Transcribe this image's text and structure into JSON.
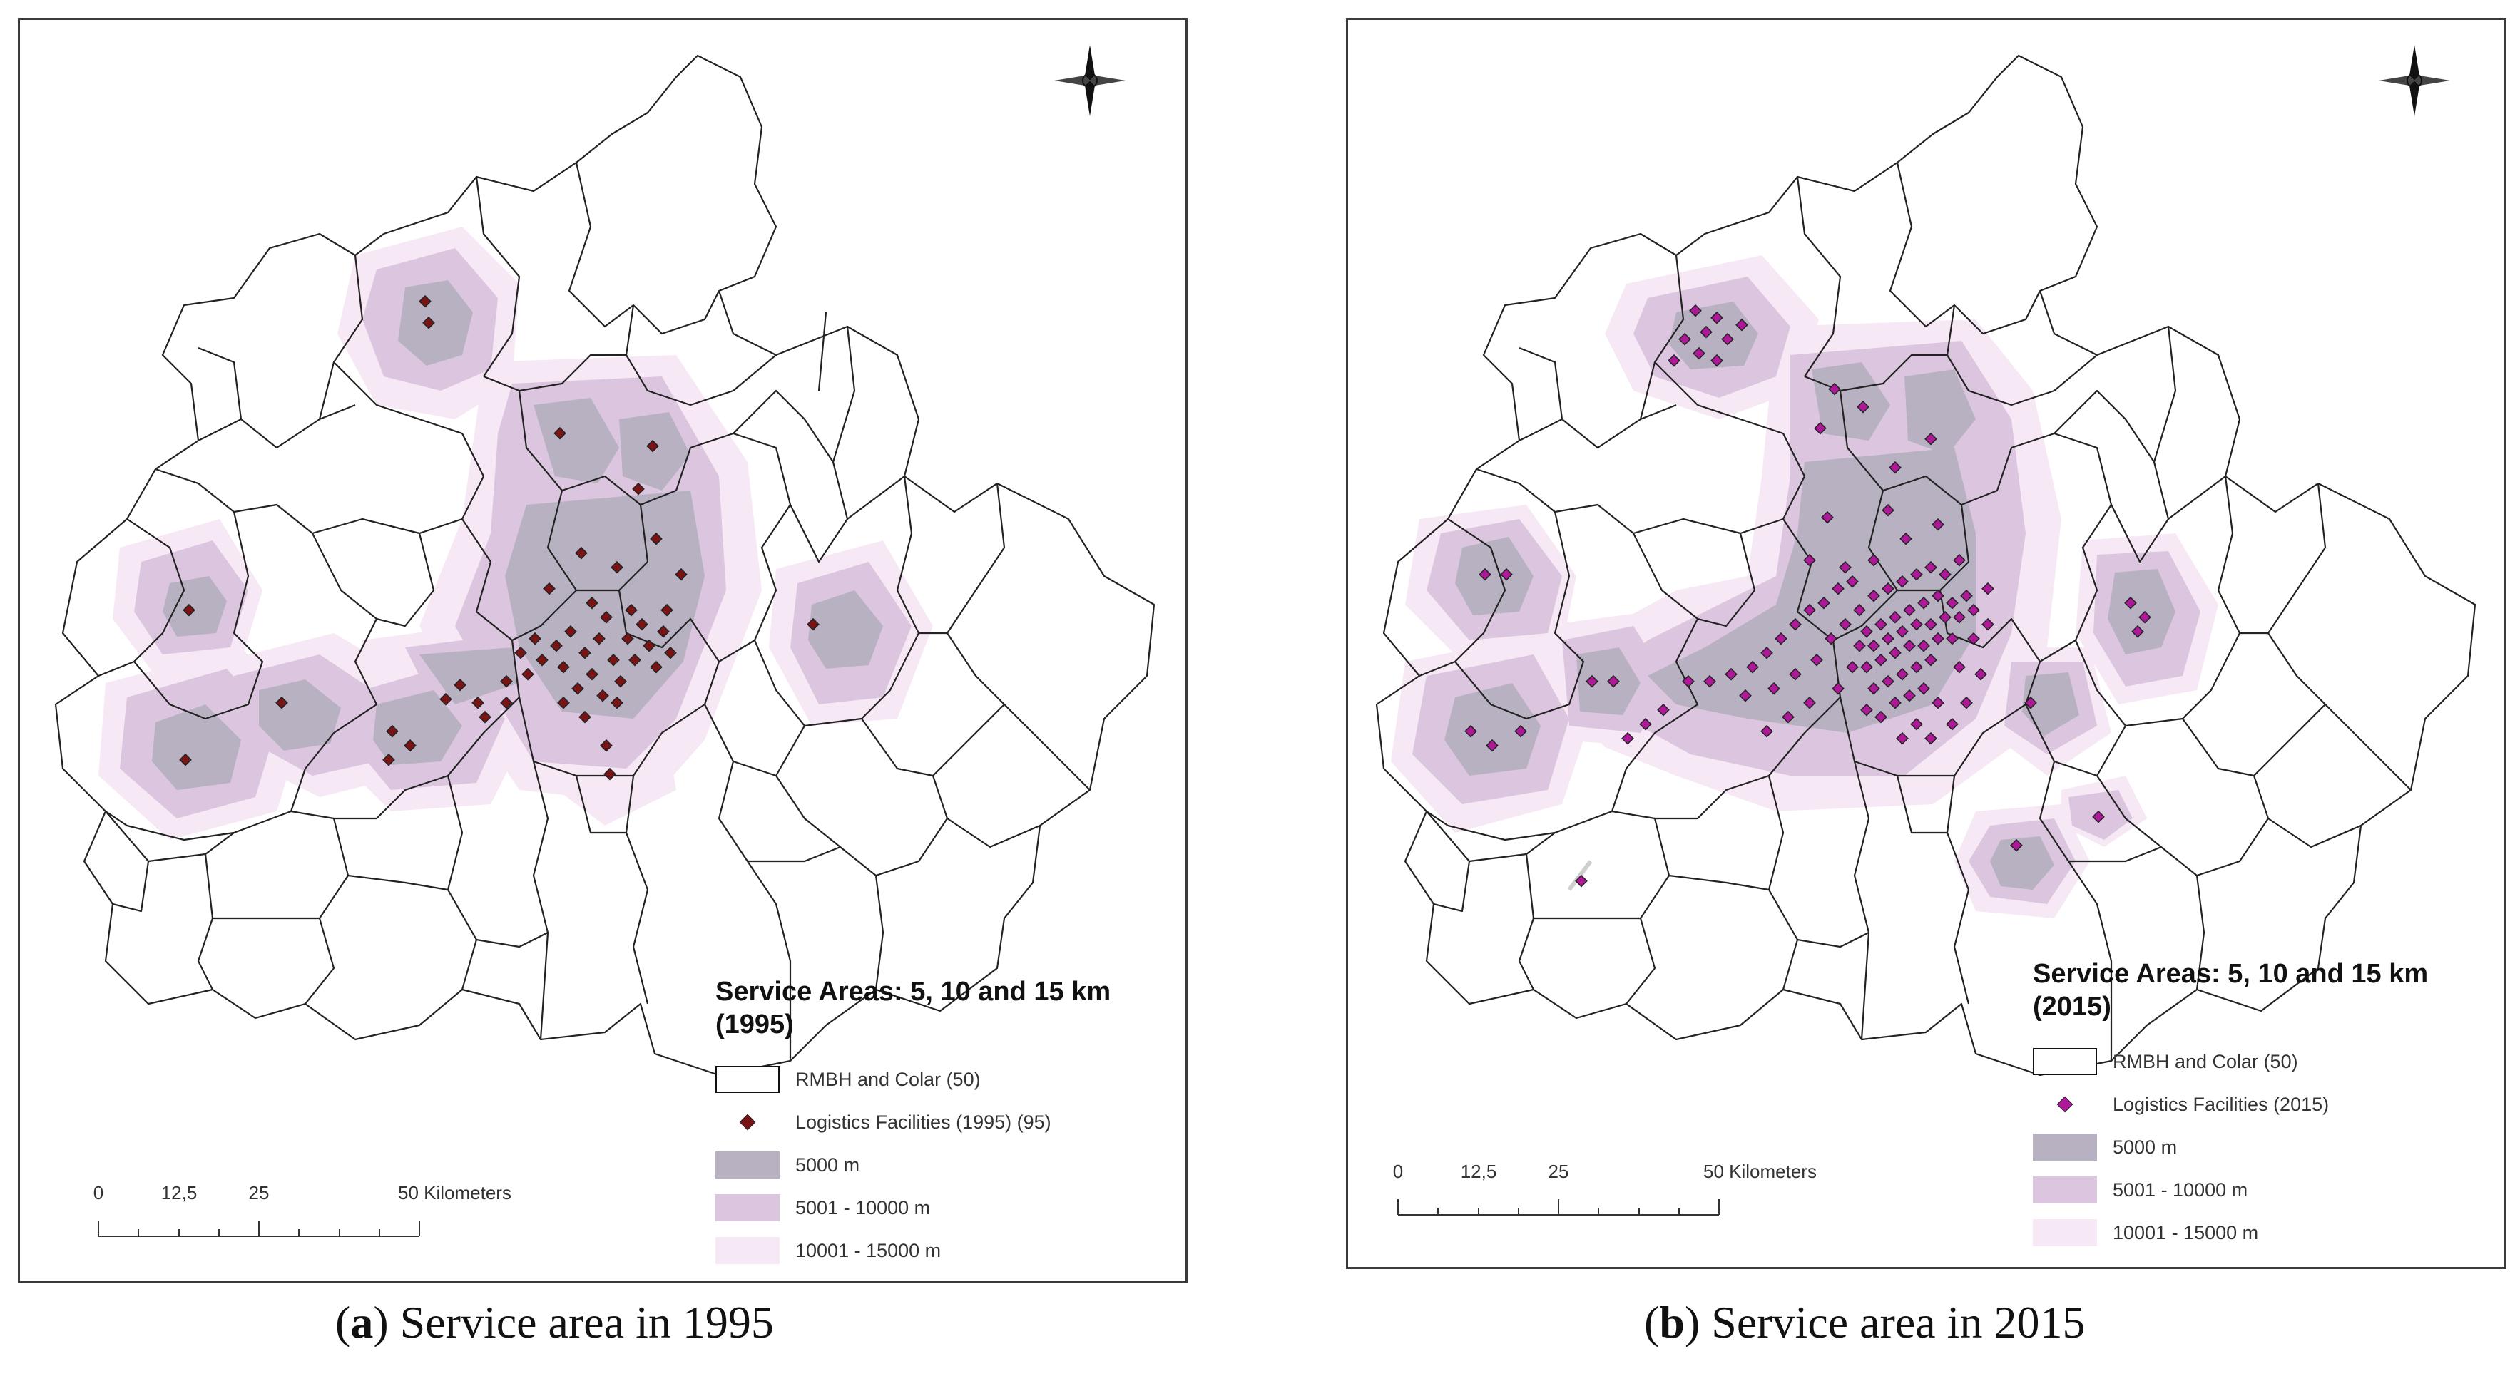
{
  "colors": {
    "zone_5000": "#b7b1c2",
    "zone_10000": "#dcc6df",
    "zone_15000": "#f6e9f5",
    "boundary": "#222222",
    "facility_1995": "#7a1414",
    "facility_2015": "#b0189a"
  },
  "panels": [
    {
      "id": "a",
      "legend_title": "Service Areas: 5, 10 and 15 km",
      "legend_year": "(1995)",
      "legend_items": [
        {
          "label": "RMBH and Colar (50)",
          "symbol": "box"
        },
        {
          "label": "Logistics Facilities (1995) (95)",
          "symbol": "point"
        },
        {
          "label": "5000 m",
          "symbol": "zone_5000"
        },
        {
          "label": "5001 - 10000 m",
          "symbol": "zone_10000"
        },
        {
          "label": "10001 - 15000 m",
          "symbol": "zone_15000"
        }
      ],
      "scale": {
        "ticks": [
          "0",
          "12,5",
          "25",
          "50 Kilometers"
        ]
      },
      "caption_letter": "a",
      "caption_text": "Service area in 1995"
    },
    {
      "id": "b",
      "legend_title": "Service Areas: 5, 10 and 15 km",
      "legend_year": "(2015)",
      "legend_items": [
        {
          "label": "RMBH and Colar (50)",
          "symbol": "box"
        },
        {
          "label": "Logistics Facilities (2015)",
          "symbol": "point"
        },
        {
          "label": "5000 m",
          "symbol": "zone_5000"
        },
        {
          "label": "5001 - 10000 m",
          "symbol": "zone_10000"
        },
        {
          "label": "10001 - 15000 m",
          "symbol": "zone_15000"
        }
      ],
      "scale": {
        "ticks": [
          "0",
          "12,5",
          "25",
          "50 Kilometers"
        ]
      },
      "caption_letter": "b",
      "caption_text": "Service area in 2015"
    }
  ]
}
